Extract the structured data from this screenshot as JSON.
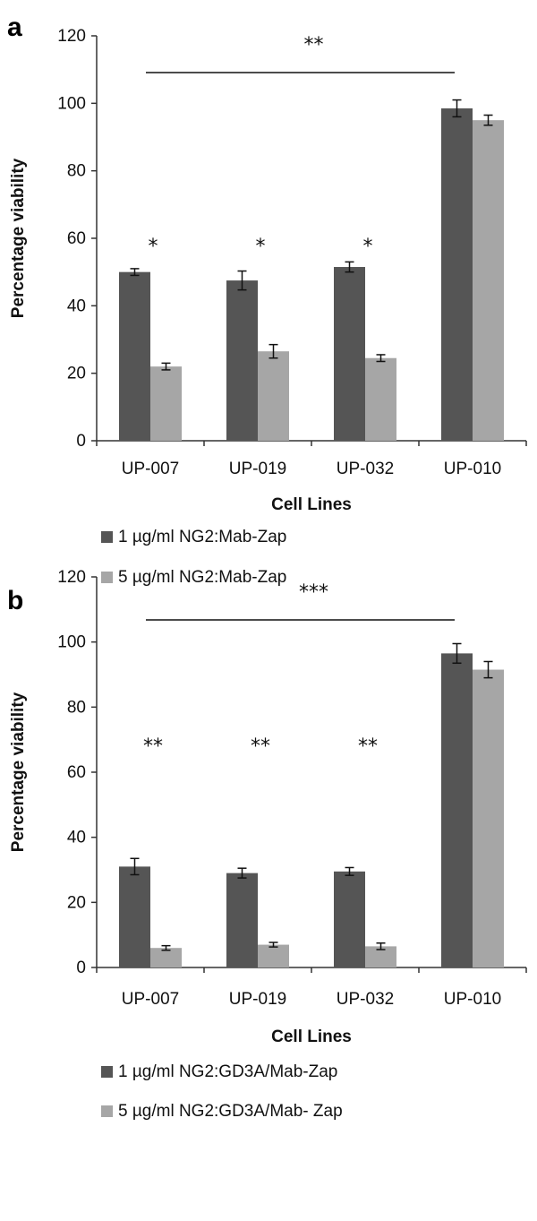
{
  "chart_data": [
    {
      "type": "bar",
      "panel_label": "a",
      "categories": [
        "UP-007",
        "UP-019",
        "UP-032",
        "UP-010"
      ],
      "series": [
        {
          "name": "1 µg/ml NG2:Mab-Zap",
          "color": "#555555",
          "values": [
            50,
            47.5,
            51.5,
            98.5
          ],
          "errors": [
            1,
            2.8,
            1.5,
            2.5
          ]
        },
        {
          "name": "5 µg/ml NG2:Mab-Zap",
          "color": "#a6a6a6",
          "values": [
            22,
            26.5,
            24.5,
            95
          ],
          "errors": [
            1,
            2,
            1,
            1.5
          ]
        }
      ],
      "ylabel": "Percentage viability",
      "xlabel": "Cell Lines",
      "ylim": [
        0,
        120
      ],
      "yticks": [
        "0",
        "20",
        "40",
        "60",
        "80",
        "100",
        "120"
      ],
      "grid": false,
      "legend_position": "bottom",
      "significance": {
        "bracket": "**",
        "bars": [
          "*",
          "*",
          "*",
          ""
        ]
      }
    },
    {
      "type": "bar",
      "panel_label": "b",
      "categories": [
        "UP-007",
        "UP-019",
        "UP-032",
        "UP-010"
      ],
      "series": [
        {
          "name": "1 µg/ml NG2:GD3A/Mab-Zap",
          "color": "#555555",
          "values": [
            31,
            29,
            29.5,
            96.5
          ],
          "errors": [
            2.5,
            1.5,
            1.2,
            3
          ]
        },
        {
          "name": "5 µg/ml NG2:GD3A/Mab- Zap",
          "color": "#a6a6a6",
          "values": [
            6,
            7,
            6.5,
            91.5
          ],
          "errors": [
            0.7,
            0.7,
            1,
            2.5
          ]
        }
      ],
      "ylabel": "Percentage viability",
      "xlabel": "Cell Lines",
      "ylim": [
        0,
        120
      ],
      "yticks": [
        "0",
        "20",
        "40",
        "60",
        "80",
        "100",
        "120"
      ],
      "grid": false,
      "legend_position": "bottom",
      "significance": {
        "bracket": "***",
        "bars": [
          "**",
          "**",
          "**",
          ""
        ]
      }
    }
  ]
}
